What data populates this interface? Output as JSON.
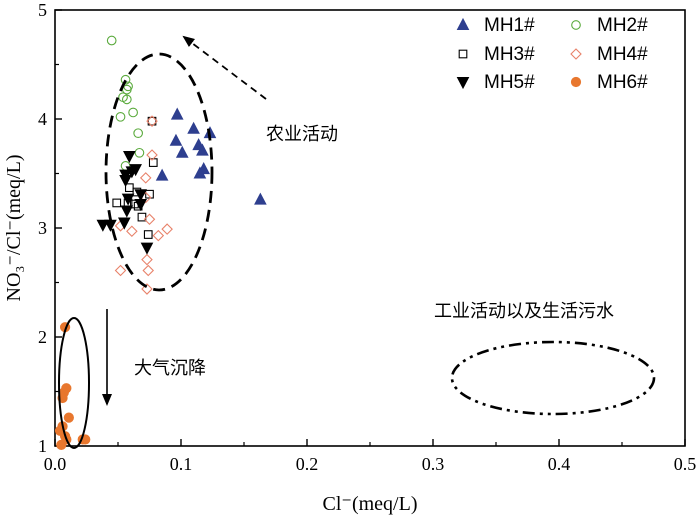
{
  "chart_data": {
    "type": "scatter",
    "xlabel": "Cl⁻(meq/L)",
    "ylabel": "NO₃⁻/Cl⁻(meq/L)",
    "xlim": [
      0,
      0.5
    ],
    "ylim": [
      1,
      5
    ],
    "xticks": [
      "0.0",
      "0.1",
      "0.2",
      "0.3",
      "0.4",
      "0.5"
    ],
    "yticks": [
      "1",
      "2",
      "3",
      "4",
      "5"
    ],
    "legend": "top-right",
    "series": [
      {
        "name": "MH1#",
        "marker": "triangle-up-filled",
        "color": "#2e3f8f",
        "points": [
          [
            0.097,
            4.04
          ],
          [
            0.096,
            3.8
          ],
          [
            0.101,
            3.69
          ],
          [
            0.11,
            3.91
          ],
          [
            0.114,
            3.76
          ],
          [
            0.117,
            3.71
          ],
          [
            0.123,
            3.87
          ],
          [
            0.118,
            3.54
          ],
          [
            0.115,
            3.5
          ],
          [
            0.085,
            3.48
          ],
          [
            0.163,
            3.26
          ]
        ]
      },
      {
        "name": "MH2#",
        "marker": "circle-open",
        "color": "#5aaa3c",
        "points": [
          [
            0.045,
            4.72
          ],
          [
            0.056,
            4.36
          ],
          [
            0.058,
            4.3
          ],
          [
            0.057,
            4.27
          ],
          [
            0.054,
            4.2
          ],
          [
            0.057,
            4.18
          ],
          [
            0.062,
            4.06
          ],
          [
            0.052,
            4.02
          ],
          [
            0.066,
            3.87
          ],
          [
            0.067,
            3.69
          ],
          [
            0.056,
            3.57
          ]
        ]
      },
      {
        "name": "MH3#",
        "marker": "square-open",
        "color": "#000000",
        "points": [
          [
            0.049,
            3.23
          ],
          [
            0.059,
            3.37
          ],
          [
            0.058,
            3.23
          ],
          [
            0.063,
            3.22
          ],
          [
            0.065,
            3.33
          ],
          [
            0.075,
            3.31
          ],
          [
            0.069,
            3.1
          ],
          [
            0.074,
            2.94
          ],
          [
            0.078,
            3.6
          ],
          [
            0.077,
            3.98
          ],
          [
            0.066,
            3.2
          ]
        ]
      },
      {
        "name": "MH4#",
        "marker": "diamond-open",
        "color": "#e8826a",
        "points": [
          [
            0.077,
            3.98
          ],
          [
            0.077,
            3.67
          ],
          [
            0.072,
            3.46
          ],
          [
            0.072,
            3.28
          ],
          [
            0.075,
            3.08
          ],
          [
            0.052,
            3.02
          ],
          [
            0.061,
            2.97
          ],
          [
            0.082,
            2.93
          ],
          [
            0.089,
            2.99
          ],
          [
            0.073,
            2.71
          ],
          [
            0.074,
            2.61
          ],
          [
            0.052,
            2.61
          ],
          [
            0.073,
            2.44
          ]
        ]
      },
      {
        "name": "MH5#",
        "marker": "triangle-down-filled",
        "color": "#000000",
        "points": [
          [
            0.038,
            3.03
          ],
          [
            0.044,
            3.03
          ],
          [
            0.055,
            3.05
          ],
          [
            0.057,
            3.16
          ],
          [
            0.058,
            3.27
          ],
          [
            0.068,
            3.22
          ],
          [
            0.068,
            3.31
          ],
          [
            0.056,
            3.44
          ],
          [
            0.056,
            3.49
          ],
          [
            0.061,
            3.52
          ],
          [
            0.064,
            3.54
          ],
          [
            0.059,
            3.66
          ],
          [
            0.073,
            2.82
          ]
        ]
      },
      {
        "name": "MH6#",
        "marker": "circle-filled",
        "color": "#e8772e",
        "points": [
          [
            0.008,
            2.09
          ],
          [
            0.009,
            1.53
          ],
          [
            0.007,
            1.49
          ],
          [
            0.006,
            1.44
          ],
          [
            0.011,
            1.26
          ],
          [
            0.006,
            1.18
          ],
          [
            0.004,
            1.14
          ],
          [
            0.008,
            1.09
          ],
          [
            0.009,
            1.06
          ],
          [
            0.024,
            1.06
          ],
          [
            0.022,
            1.06
          ],
          [
            0.005,
            1.01
          ]
        ]
      }
    ],
    "annotations": [
      {
        "text": "农业活动"
      },
      {
        "text": "大气沉降"
      },
      {
        "text": "工业活动以及生活污水"
      }
    ]
  }
}
